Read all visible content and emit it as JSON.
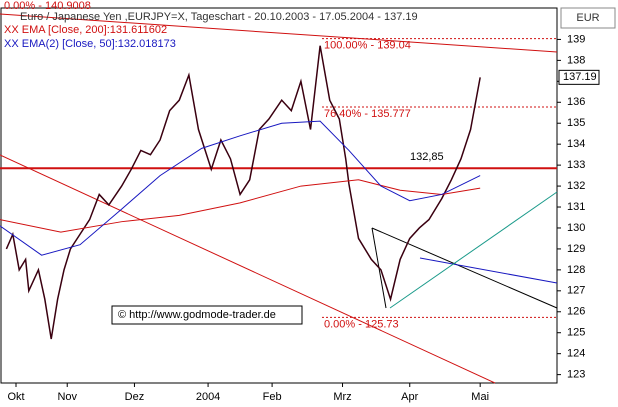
{
  "chart_data": {
    "type": "line",
    "title": "Euro / Japanese Yen ,EURJPY=X, Tageschart - 20.10.2003 - 17.05.2004 - 137.19",
    "top_note": "0.00% - 140.9008",
    "currency": "EUR",
    "watermark": "© http://www.godmode-trader.de",
    "xlim": [
      0,
      174
    ],
    "ylim": [
      122.6,
      140.5
    ],
    "xticks": [
      {
        "value": 5,
        "label": "Okt"
      },
      {
        "value": 21,
        "label": "Nov"
      },
      {
        "value": 42,
        "label": "Dez"
      },
      {
        "value": 65,
        "label": "2004"
      },
      {
        "value": 85,
        "label": "Feb"
      },
      {
        "value": 107,
        "label": "Mrz"
      },
      {
        "value": 128,
        "label": "Apr"
      },
      {
        "value": 150,
        "label": "Mai"
      }
    ],
    "yticks": [
      123,
      124,
      125,
      126,
      127,
      128,
      129,
      130,
      131,
      132,
      133,
      134,
      135,
      136,
      137,
      138,
      139
    ],
    "series": [
      {
        "color": "#3a0010",
        "x": [
          2,
          4,
          6,
          8,
          9,
          12,
          14,
          16,
          18,
          20,
          22,
          25,
          28,
          31,
          34,
          38,
          41,
          44,
          47,
          50,
          53,
          56,
          59,
          62,
          66,
          69,
          72,
          75,
          78,
          81,
          84,
          88,
          91,
          94,
          97,
          100,
          103,
          106,
          108,
          109,
          112,
          116,
          119,
          122,
          125,
          128,
          131,
          134,
          138,
          141,
          144,
          147,
          150
        ],
        "values": [
          129.0,
          129.7,
          128.0,
          128.5,
          127.0,
          128.0,
          126.6,
          124.7,
          126.6,
          128.0,
          129.0,
          129.7,
          130.4,
          131.6,
          131.1,
          132.0,
          132.8,
          133.7,
          133.5,
          134.2,
          135.6,
          136.1,
          137.3,
          134.7,
          132.8,
          134.2,
          133.3,
          131.6,
          132.3,
          134.7,
          135.2,
          136.1,
          135.6,
          137.0,
          134.7,
          138.7,
          136.1,
          135.2,
          133.3,
          132.1,
          129.5,
          128.5,
          128.0,
          126.6,
          128.5,
          129.5,
          130.0,
          130.4,
          131.4,
          132.3,
          133.3,
          134.7,
          137.19
        ]
      },
      {
        "name": "XX EMA [Close, 200]:131.611602",
        "color": "#d01010",
        "x": [
          0,
          19,
          38,
          56,
          75,
          94,
          112,
          125,
          138,
          150
        ],
        "values": [
          130.4,
          129.8,
          130.3,
          130.6,
          131.2,
          132.0,
          132.3,
          131.8,
          131.6,
          131.9
        ]
      },
      {
        "name": "XX EMA(2) [Close, 50]:132.018173",
        "color": "#1818c0",
        "x": [
          0,
          13,
          25,
          38,
          50,
          63,
          75,
          88,
          100,
          109,
          119,
          128,
          138,
          150
        ],
        "values": [
          130.1,
          128.7,
          129.2,
          130.9,
          132.5,
          133.8,
          134.4,
          135.0,
          135.1,
          133.7,
          132.0,
          131.3,
          131.6,
          132.5
        ]
      }
    ],
    "levels": [
      {
        "value": 139.04,
        "label": "100.00% - 139.04"
      },
      {
        "value": 135.777,
        "label": "76.40% - 135.777"
      },
      {
        "value": 125.73,
        "label": "0.00% - 125.73"
      }
    ],
    "support": {
      "value": 132.85,
      "label": "132,85"
    }
  }
}
